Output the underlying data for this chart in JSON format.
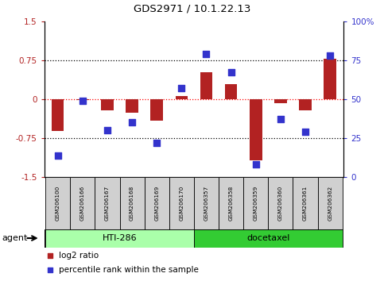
{
  "title": "GDS2971 / 10.1.22.13",
  "samples": [
    "GSM206100",
    "GSM206166",
    "GSM206167",
    "GSM206168",
    "GSM206169",
    "GSM206170",
    "GSM206357",
    "GSM206358",
    "GSM206359",
    "GSM206360",
    "GSM206361",
    "GSM206362"
  ],
  "log2_ratio": [
    -0.62,
    -0.02,
    -0.22,
    -0.27,
    -0.42,
    0.06,
    0.52,
    0.28,
    -1.18,
    -0.08,
    -0.22,
    0.78
  ],
  "percentile_rank": [
    14,
    49,
    30,
    35,
    22,
    57,
    79,
    67,
    8,
    37,
    29,
    78
  ],
  "ylim_left": [
    -1.5,
    1.5
  ],
  "ylim_right": [
    0,
    100
  ],
  "yticks_left": [
    -1.5,
    -0.75,
    0,
    0.75,
    1.5
  ],
  "yticks_right": [
    0,
    25,
    50,
    75,
    100
  ],
  "hlines": [
    0.75,
    0,
    -0.75
  ],
  "bar_color": "#B22222",
  "dot_color": "#3333CC",
  "zero_line_color": "#FF0000",
  "hline_color": "#000000",
  "agent_groups": [
    {
      "label": "HTI-286",
      "start": 0,
      "end": 6,
      "color": "#AAFFAA"
    },
    {
      "label": "docetaxel",
      "start": 6,
      "end": 12,
      "color": "#33CC33"
    }
  ],
  "agent_label": "agent",
  "legend_items": [
    {
      "label": "log2 ratio",
      "color": "#B22222"
    },
    {
      "label": "percentile rank within the sample",
      "color": "#3333CC"
    }
  ],
  "bar_width": 0.5,
  "dot_size": 28
}
